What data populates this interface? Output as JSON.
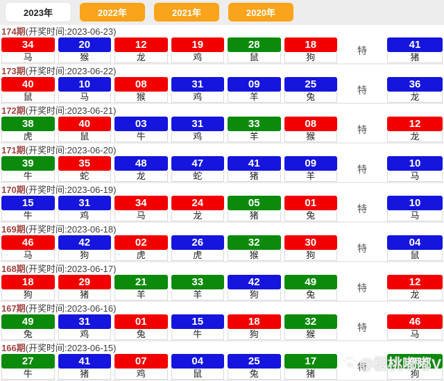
{
  "tabs": [
    {
      "label": "2023年",
      "active": true
    },
    {
      "label": "2022年",
      "active": false
    },
    {
      "label": "2021年",
      "active": false
    },
    {
      "label": "2020年",
      "active": false
    }
  ],
  "special_marker": "特",
  "colors": {
    "red": "#f20000",
    "blue": "#1515dd",
    "green": "#0c8a0c",
    "tab_orange": "#f9a41b"
  },
  "rows": [
    {
      "period": "174期",
      "draw_time": "(开奖时间:2023-06-23)",
      "numbers": [
        {
          "num": "34",
          "zodiac": "马",
          "color": "red"
        },
        {
          "num": "20",
          "zodiac": "猴",
          "color": "blue"
        },
        {
          "num": "12",
          "zodiac": "龙",
          "color": "red"
        },
        {
          "num": "19",
          "zodiac": "鸡",
          "color": "red"
        },
        {
          "num": "28",
          "zodiac": "鼠",
          "color": "green"
        },
        {
          "num": "18",
          "zodiac": "狗",
          "color": "red"
        }
      ],
      "special": {
        "num": "41",
        "zodiac": "猪",
        "color": "blue"
      }
    },
    {
      "period": "173期",
      "draw_time": "(开奖时间:2023-06-22)",
      "numbers": [
        {
          "num": "40",
          "zodiac": "鼠",
          "color": "red"
        },
        {
          "num": "10",
          "zodiac": "马",
          "color": "blue"
        },
        {
          "num": "08",
          "zodiac": "猴",
          "color": "red"
        },
        {
          "num": "31",
          "zodiac": "鸡",
          "color": "blue"
        },
        {
          "num": "09",
          "zodiac": "羊",
          "color": "blue"
        },
        {
          "num": "25",
          "zodiac": "兔",
          "color": "blue"
        }
      ],
      "special": {
        "num": "36",
        "zodiac": "龙",
        "color": "blue"
      }
    },
    {
      "period": "172期",
      "draw_time": "(开奖时间:2023-06-21)",
      "numbers": [
        {
          "num": "38",
          "zodiac": "虎",
          "color": "green"
        },
        {
          "num": "40",
          "zodiac": "鼠",
          "color": "red"
        },
        {
          "num": "03",
          "zodiac": "牛",
          "color": "blue"
        },
        {
          "num": "31",
          "zodiac": "鸡",
          "color": "blue"
        },
        {
          "num": "33",
          "zodiac": "羊",
          "color": "green"
        },
        {
          "num": "08",
          "zodiac": "猴",
          "color": "red"
        }
      ],
      "special": {
        "num": "12",
        "zodiac": "龙",
        "color": "red"
      }
    },
    {
      "period": "171期",
      "draw_time": "(开奖时间:2023-06-20)",
      "numbers": [
        {
          "num": "39",
          "zodiac": "牛",
          "color": "green"
        },
        {
          "num": "35",
          "zodiac": "蛇",
          "color": "red"
        },
        {
          "num": "48",
          "zodiac": "龙",
          "color": "blue"
        },
        {
          "num": "47",
          "zodiac": "蛇",
          "color": "blue"
        },
        {
          "num": "41",
          "zodiac": "猪",
          "color": "blue"
        },
        {
          "num": "09",
          "zodiac": "羊",
          "color": "blue"
        }
      ],
      "special": {
        "num": "10",
        "zodiac": "马",
        "color": "blue"
      }
    },
    {
      "period": "170期",
      "draw_time": "(开奖时间:2023-06-19)",
      "numbers": [
        {
          "num": "15",
          "zodiac": "牛",
          "color": "blue"
        },
        {
          "num": "31",
          "zodiac": "鸡",
          "color": "blue"
        },
        {
          "num": "34",
          "zodiac": "马",
          "color": "red"
        },
        {
          "num": "24",
          "zodiac": "龙",
          "color": "red"
        },
        {
          "num": "05",
          "zodiac": "猪",
          "color": "green"
        },
        {
          "num": "01",
          "zodiac": "兔",
          "color": "red"
        }
      ],
      "special": {
        "num": "10",
        "zodiac": "马",
        "color": "blue"
      }
    },
    {
      "period": "169期",
      "draw_time": "(开奖时间:2023-06-18)",
      "numbers": [
        {
          "num": "46",
          "zodiac": "马",
          "color": "red"
        },
        {
          "num": "42",
          "zodiac": "狗",
          "color": "blue"
        },
        {
          "num": "02",
          "zodiac": "虎",
          "color": "red"
        },
        {
          "num": "26",
          "zodiac": "虎",
          "color": "blue"
        },
        {
          "num": "32",
          "zodiac": "猴",
          "color": "green"
        },
        {
          "num": "30",
          "zodiac": "狗",
          "color": "red"
        }
      ],
      "special": {
        "num": "04",
        "zodiac": "鼠",
        "color": "blue"
      }
    },
    {
      "period": "168期",
      "draw_time": "(开奖时间:2023-06-17)",
      "numbers": [
        {
          "num": "18",
          "zodiac": "狗",
          "color": "red"
        },
        {
          "num": "29",
          "zodiac": "猪",
          "color": "red"
        },
        {
          "num": "21",
          "zodiac": "羊",
          "color": "green"
        },
        {
          "num": "33",
          "zodiac": "羊",
          "color": "green"
        },
        {
          "num": "42",
          "zodiac": "狗",
          "color": "blue"
        },
        {
          "num": "49",
          "zodiac": "兔",
          "color": "green"
        }
      ],
      "special": {
        "num": "12",
        "zodiac": "龙",
        "color": "red"
      }
    },
    {
      "period": "167期",
      "draw_time": "(开奖时间:2023-06-16)",
      "numbers": [
        {
          "num": "49",
          "zodiac": "兔",
          "color": "green"
        },
        {
          "num": "31",
          "zodiac": "鸡",
          "color": "blue"
        },
        {
          "num": "01",
          "zodiac": "兔",
          "color": "red"
        },
        {
          "num": "15",
          "zodiac": "牛",
          "color": "blue"
        },
        {
          "num": "18",
          "zodiac": "狗",
          "color": "red"
        },
        {
          "num": "32",
          "zodiac": "猴",
          "color": "green"
        }
      ],
      "special": {
        "num": "46",
        "zodiac": "马",
        "color": "red"
      }
    },
    {
      "period": "166期",
      "draw_time": "(开奖时间:2023-06-15)",
      "numbers": [
        {
          "num": "27",
          "zodiac": "牛",
          "color": "green"
        },
        {
          "num": "41",
          "zodiac": "猪",
          "color": "blue"
        },
        {
          "num": "07",
          "zodiac": "鸡",
          "color": "red"
        },
        {
          "num": "04",
          "zodiac": "鼠",
          "color": "blue"
        },
        {
          "num": "25",
          "zodiac": "兔",
          "color": "blue"
        },
        {
          "num": "17",
          "zodiac": "猪",
          "color": "green"
        }
      ],
      "special": {
        "num": "06",
        "zodiac": "狗",
        "color": "green"
      }
    }
  ],
  "watermark": {
    "text": "@樱桃嘟嘟V",
    "icon": "paw-icon"
  }
}
